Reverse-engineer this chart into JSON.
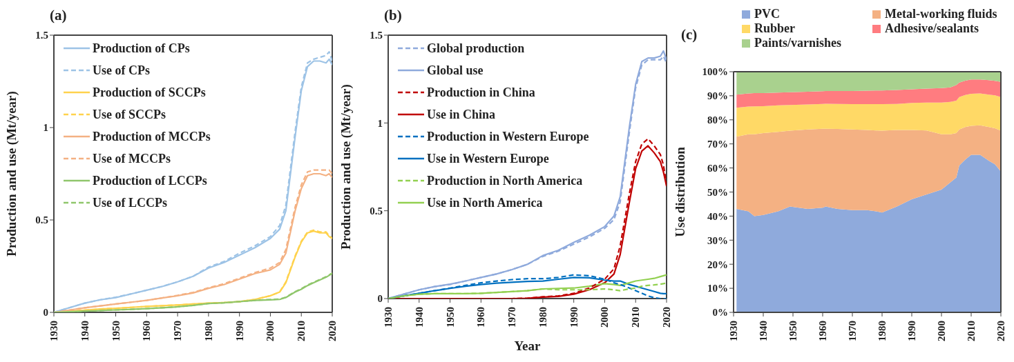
{
  "chart_data": [
    {
      "type": "line",
      "title": "(a)",
      "ylabel": "Production and use (Mt/year)",
      "legend": "top left",
      "grid": false,
      "xlim": [
        1930,
        2020
      ],
      "xticks": [
        1930,
        1940,
        1950,
        1960,
        1970,
        1980,
        1990,
        2000,
        2010,
        2020
      ],
      "ylim": [
        0,
        1.5
      ],
      "yticks": [
        0,
        0.5,
        1,
        1.5
      ],
      "x": [
        1930,
        1935,
        1940,
        1945,
        1950,
        1955,
        1960,
        1965,
        1970,
        1975,
        1980,
        1985,
        1990,
        1995,
        2000,
        2003,
        2005,
        2008,
        2010,
        2012,
        2014,
        2016,
        2018,
        2019,
        2020
      ],
      "series": [
        {
          "name": "Production of CPs",
          "color": "#9dc3e6",
          "line_style": "solid",
          "values": [
            0,
            0.025,
            0.05,
            0.068,
            0.08,
            0.1,
            0.12,
            0.14,
            0.165,
            0.195,
            0.24,
            0.27,
            0.31,
            0.35,
            0.4,
            0.45,
            0.55,
            0.95,
            1.2,
            1.33,
            1.36,
            1.36,
            1.35,
            1.37,
            1.34
          ]
        },
        {
          "name": "Use of CPs",
          "color": "#9dc3e6",
          "line_style": "dashed",
          "values": [
            0,
            0.025,
            0.05,
            0.068,
            0.082,
            0.1,
            0.12,
            0.14,
            0.165,
            0.195,
            0.245,
            0.275,
            0.32,
            0.36,
            0.41,
            0.47,
            0.58,
            0.98,
            1.22,
            1.35,
            1.37,
            1.38,
            1.39,
            1.41,
            1.36
          ]
        },
        {
          "name": "Production of SCCPs",
          "color": "#ffd24d",
          "line_style": "solid",
          "values": [
            0,
            0.005,
            0.012,
            0.018,
            0.022,
            0.027,
            0.032,
            0.036,
            0.04,
            0.045,
            0.05,
            0.053,
            0.058,
            0.07,
            0.09,
            0.11,
            0.16,
            0.3,
            0.38,
            0.43,
            0.44,
            0.43,
            0.43,
            0.41,
            0.4
          ]
        },
        {
          "name": "Use of SCCPs",
          "color": "#ffd24d",
          "line_style": "dashed",
          "values": [
            0,
            0.005,
            0.012,
            0.018,
            0.022,
            0.027,
            0.032,
            0.036,
            0.04,
            0.045,
            0.05,
            0.053,
            0.058,
            0.07,
            0.09,
            0.11,
            0.165,
            0.305,
            0.385,
            0.435,
            0.445,
            0.435,
            0.435,
            0.415,
            0.4
          ]
        },
        {
          "name": "Production of MCCPs",
          "color": "#f4b183",
          "line_style": "solid",
          "values": [
            0,
            0.012,
            0.025,
            0.035,
            0.045,
            0.055,
            0.065,
            0.078,
            0.09,
            0.105,
            0.13,
            0.15,
            0.18,
            0.21,
            0.23,
            0.26,
            0.32,
            0.55,
            0.67,
            0.74,
            0.75,
            0.75,
            0.74,
            0.75,
            0.73
          ]
        },
        {
          "name": "Use of MCCPs",
          "color": "#f4b183",
          "line_style": "dashed",
          "values": [
            0,
            0.012,
            0.025,
            0.035,
            0.045,
            0.055,
            0.065,
            0.078,
            0.092,
            0.108,
            0.133,
            0.155,
            0.185,
            0.215,
            0.24,
            0.27,
            0.34,
            0.57,
            0.69,
            0.76,
            0.77,
            0.77,
            0.77,
            0.77,
            0.75
          ]
        },
        {
          "name": "Production of LCCPs",
          "color": "#8fc66b",
          "line_style": "solid",
          "values": [
            0,
            0.003,
            0.007,
            0.01,
            0.013,
            0.016,
            0.02,
            0.025,
            0.03,
            0.038,
            0.048,
            0.052,
            0.058,
            0.065,
            0.068,
            0.07,
            0.08,
            0.11,
            0.125,
            0.145,
            0.16,
            0.175,
            0.19,
            0.2,
            0.21
          ]
        },
        {
          "name": "Use of LCCPs",
          "color": "#8fc66b",
          "line_style": "dashed",
          "values": [
            0,
            0.003,
            0.007,
            0.01,
            0.013,
            0.016,
            0.02,
            0.025,
            0.03,
            0.038,
            0.048,
            0.052,
            0.058,
            0.065,
            0.07,
            0.072,
            0.082,
            0.112,
            0.128,
            0.148,
            0.163,
            0.178,
            0.193,
            0.203,
            0.213
          ]
        }
      ]
    },
    {
      "type": "line",
      "title": "(b)",
      "xlabel": "Year",
      "ylabel": "Production and use (Mt/year)",
      "legend": "top left",
      "grid": false,
      "xlim": [
        1930,
        2020
      ],
      "xticks": [
        1930,
        1940,
        1950,
        1960,
        1970,
        1980,
        1990,
        2000,
        2010,
        2020
      ],
      "ylim": [
        0,
        1.5
      ],
      "yticks": [
        0,
        0.5,
        1,
        1.5
      ],
      "x": [
        1930,
        1935,
        1940,
        1945,
        1950,
        1955,
        1960,
        1965,
        1970,
        1975,
        1980,
        1985,
        1990,
        1995,
        2000,
        2003,
        2005,
        2008,
        2010,
        2012,
        2014,
        2016,
        2018,
        2019,
        2020
      ],
      "series": [
        {
          "name": "Global production",
          "color": "#8faadc",
          "line_style": "dashed",
          "values": [
            0,
            0.025,
            0.05,
            0.068,
            0.08,
            0.1,
            0.12,
            0.14,
            0.165,
            0.195,
            0.24,
            0.27,
            0.31,
            0.35,
            0.4,
            0.45,
            0.55,
            0.95,
            1.2,
            1.33,
            1.36,
            1.36,
            1.36,
            1.38,
            1.34
          ]
        },
        {
          "name": "Global use",
          "color": "#8faadc",
          "line_style": "solid",
          "values": [
            0,
            0.025,
            0.05,
            0.068,
            0.082,
            0.1,
            0.12,
            0.14,
            0.165,
            0.195,
            0.245,
            0.275,
            0.32,
            0.36,
            0.41,
            0.47,
            0.58,
            0.98,
            1.22,
            1.35,
            1.37,
            1.37,
            1.38,
            1.41,
            1.36
          ]
        },
        {
          "name": "Production in China",
          "color": "#c00000",
          "line_style": "dashed",
          "values": [
            0,
            0,
            0,
            0,
            0,
            0,
            0,
            0,
            0,
            0.002,
            0.01,
            0.015,
            0.03,
            0.06,
            0.11,
            0.17,
            0.3,
            0.6,
            0.78,
            0.88,
            0.91,
            0.87,
            0.82,
            0.76,
            0.65
          ]
        },
        {
          "name": "Use in China",
          "color": "#c00000",
          "line_style": "solid",
          "values": [
            0,
            0,
            0,
            0,
            0,
            0,
            0,
            0,
            0,
            0.002,
            0.008,
            0.012,
            0.025,
            0.05,
            0.09,
            0.14,
            0.25,
            0.55,
            0.74,
            0.84,
            0.87,
            0.83,
            0.78,
            0.72,
            0.64
          ]
        },
        {
          "name": "Production in Western Europe",
          "color": "#0070c0",
          "line_style": "dashed",
          "values": [
            0,
            0.015,
            0.03,
            0.045,
            0.06,
            0.075,
            0.09,
            0.1,
            0.108,
            0.113,
            0.113,
            0.12,
            0.135,
            0.13,
            0.11,
            0.09,
            0.08,
            0.06,
            0.045,
            0.03,
            0.015,
            0.005,
            0,
            0,
            0
          ]
        },
        {
          "name": "Use in Western Europe",
          "color": "#0070c0",
          "line_style": "solid",
          "values": [
            0,
            0.015,
            0.03,
            0.045,
            0.058,
            0.07,
            0.08,
            0.088,
            0.093,
            0.098,
            0.1,
            0.11,
            0.12,
            0.118,
            0.105,
            0.1,
            0.1,
            0.08,
            0.07,
            0.06,
            0.05,
            0.04,
            0.03,
            0.028,
            0.028
          ]
        },
        {
          "name": "Production in North America",
          "color": "#92d050",
          "line_style": "dashed",
          "values": [
            0,
            0.015,
            0.025,
            0.028,
            0.028,
            0.028,
            0.03,
            0.035,
            0.04,
            0.045,
            0.055,
            0.05,
            0.05,
            0.05,
            0.055,
            0.05,
            0.045,
            0.055,
            0.06,
            0.07,
            0.075,
            0.078,
            0.082,
            0.085,
            0.088
          ]
        },
        {
          "name": "Use in North America",
          "color": "#92d050",
          "line_style": "solid",
          "values": [
            0,
            0.015,
            0.025,
            0.028,
            0.028,
            0.028,
            0.03,
            0.035,
            0.04,
            0.045,
            0.055,
            0.058,
            0.06,
            0.07,
            0.085,
            0.08,
            0.075,
            0.09,
            0.1,
            0.105,
            0.11,
            0.115,
            0.125,
            0.13,
            0.135
          ]
        }
      ]
    },
    {
      "type": "area",
      "title": "(c)",
      "ylabel": "Use distribution",
      "legend": "top",
      "grid": false,
      "stacked": true,
      "xlim": [
        1930,
        2020
      ],
      "xticks": [
        1930,
        1940,
        1950,
        1960,
        1970,
        1980,
        1990,
        2000,
        2010,
        2020
      ],
      "ylim": [
        0,
        100
      ],
      "yticks": [
        {
          "value": 0,
          "label": "0%"
        },
        {
          "value": 10,
          "label": "10%"
        },
        {
          "value": 20,
          "label": "20%"
        },
        {
          "value": 30,
          "label": "30%"
        },
        {
          "value": 40,
          "label": "40%"
        },
        {
          "value": 50,
          "label": "50%"
        },
        {
          "value": 60,
          "label": "60%"
        },
        {
          "value": 70,
          "label": "70%"
        },
        {
          "value": 80,
          "label": "80%"
        },
        {
          "value": 90,
          "label": "90%"
        },
        {
          "value": 100,
          "label": "100%"
        }
      ],
      "x": [
        1931,
        1935,
        1937,
        1940,
        1945,
        1949,
        1955,
        1960,
        1961,
        1965,
        1970,
        1975,
        1978,
        1980,
        1985,
        1990,
        1995,
        2000,
        2003,
        2005,
        2006,
        2008,
        2010,
        2013,
        2016,
        2018,
        2020
      ],
      "series": [
        {
          "name": "PVC",
          "color": "#8faadc",
          "values": [
            43,
            42,
            40,
            40.5,
            42,
            44,
            43,
            43.5,
            44,
            43,
            42.5,
            42.5,
            42,
            41.5,
            44,
            47,
            49,
            51,
            54,
            56,
            61,
            63.5,
            65.5,
            65.5,
            63,
            61.5,
            58.5
          ]
        },
        {
          "name": "Metal-working fluids",
          "color": "#f4b183",
          "values": [
            30,
            32,
            34,
            34,
            33,
            31.5,
            33,
            32.8,
            32.3,
            33.2,
            33.5,
            33.3,
            33.6,
            34,
            31.8,
            28.8,
            26.6,
            23,
            20,
            18.5,
            15,
            13.5,
            12,
            12.2,
            14,
            15,
            17
          ]
        },
        {
          "name": "Rubber",
          "color": "#ffd966",
          "values": [
            12,
            11.5,
            11.6,
            11.2,
            11,
            10.7,
            10.4,
            10.3,
            10.4,
            10.4,
            10.5,
            10.7,
            10.9,
            11,
            10.8,
            11.2,
            11.6,
            13.2,
            13.5,
            13.5,
            13.5,
            13.3,
            13.3,
            13.3,
            13.5,
            13.7,
            14
          ]
        },
        {
          "name": "Adhesive/sealants",
          "color": "#ff7c80",
          "values": [
            5.5,
            5.5,
            5.5,
            5.4,
            5.3,
            5.3,
            5.3,
            5.3,
            5.3,
            5.4,
            5.5,
            5.6,
            5.7,
            5.7,
            5.8,
            5.7,
            5.8,
            6,
            6,
            6.5,
            6,
            6,
            6,
            5.8,
            6,
            6,
            6.3
          ]
        },
        {
          "name": "Paints/varnishes",
          "color": "#a9d18e",
          "values": [
            9.5,
            9,
            8.9,
            8.9,
            8.7,
            8.5,
            8.3,
            8.1,
            8,
            8,
            8,
            7.9,
            7.8,
            7.8,
            7.6,
            7.3,
            7,
            6.8,
            6.5,
            5.5,
            4.5,
            3.7,
            3.2,
            3.2,
            3.5,
            3.8,
            4.2
          ]
        }
      ]
    }
  ]
}
